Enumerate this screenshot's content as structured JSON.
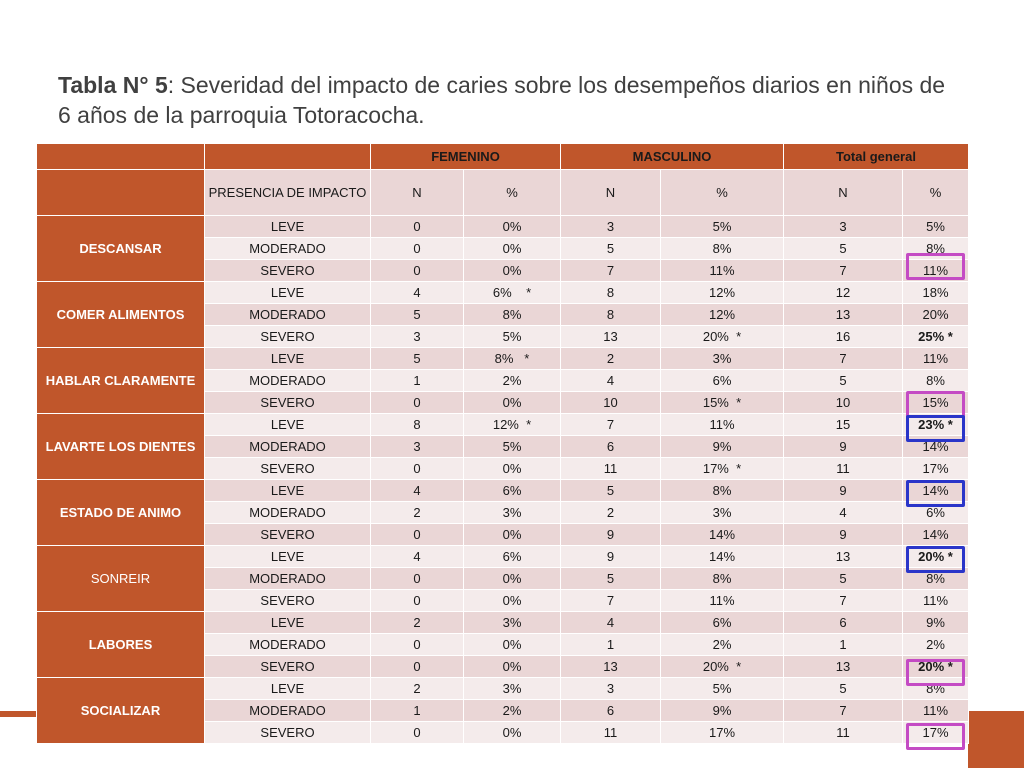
{
  "title": {
    "bold": "Tabla N° 5",
    "rest": ": Severidad del impacto de caries sobre los desempeños diarios en niños de 6 años de la parroquia Totoracocha."
  },
  "headers": {
    "femenino": "FEMENINO",
    "masculino": "MASCULINO",
    "total": "Total general",
    "presencia": "PRESENCIA DE IMPACTO",
    "n": "N",
    "pct": "%"
  },
  "groups": [
    {
      "name": "DESCANSAR",
      "rows": [
        [
          "LEVE",
          "0",
          "0%",
          "3",
          "5%",
          "3",
          "5%"
        ],
        [
          "MODERADO",
          "0",
          "0%",
          "5",
          "8%",
          "5",
          "8%"
        ],
        [
          "SEVERO",
          "0",
          "0%",
          "7",
          "11%",
          "7",
          "11%"
        ]
      ]
    },
    {
      "name": "COMER ALIMENTOS",
      "rows": [
        [
          "LEVE",
          "4",
          "6%    *",
          "8",
          "12%",
          "12",
          "18%"
        ],
        [
          "MODERADO",
          "5",
          "8%",
          "8",
          "12%",
          "13",
          "20%"
        ],
        [
          "SEVERO",
          "3",
          "5%",
          "13",
          "20%  *",
          "16",
          "25% *"
        ]
      ]
    },
    {
      "name": "HABLAR CLARAMENTE",
      "rows": [
        [
          "LEVE",
          "5",
          "8%   *",
          "2",
          "3%",
          "7",
          "11%"
        ],
        [
          "MODERADO",
          "1",
          "2%",
          "4",
          "6%",
          "5",
          "8%"
        ],
        [
          "SEVERO",
          "0",
          "0%",
          "10",
          "15%  *",
          "10",
          "15%"
        ]
      ]
    },
    {
      "name": "LAVARTE LOS DIENTES",
      "rows": [
        [
          "LEVE",
          "8",
          "12%  *",
          "7",
          "11%",
          "15",
          "23% *"
        ],
        [
          "MODERADO",
          "3",
          "5%",
          "6",
          "9%",
          "9",
          "14%"
        ],
        [
          "SEVERO",
          "0",
          "0%",
          "11",
          "17%  *",
          "11",
          "17%"
        ]
      ]
    },
    {
      "name": "ESTADO DE ANIMO",
      "rows": [
        [
          "LEVE",
          "4",
          "6%",
          "5",
          "8%",
          "9",
          "14%"
        ],
        [
          "MODERADO",
          "2",
          "3%",
          "2",
          "3%",
          "4",
          "6%"
        ],
        [
          "SEVERO",
          "0",
          "0%",
          "9",
          "14%",
          "9",
          "14%"
        ]
      ]
    },
    {
      "name": "SONREIR",
      "rows": [
        [
          "LEVE",
          "4",
          "6%",
          "9",
          "14%",
          "13",
          "20% *"
        ],
        [
          "MODERADO",
          "0",
          "0%",
          "5",
          "8%",
          "5",
          "8%"
        ],
        [
          "SEVERO",
          "0",
          "0%",
          "7",
          "11%",
          "7",
          "11%"
        ]
      ]
    },
    {
      "name": "LABORES",
      "rows": [
        [
          "LEVE",
          "2",
          "3%",
          "4",
          "6%",
          "6",
          "9%"
        ],
        [
          "MODERADO",
          "0",
          "0%",
          "1",
          "2%",
          "1",
          "2%"
        ],
        [
          "SEVERO",
          "0",
          "0%",
          "13",
          "20%  *",
          "13",
          "20% *"
        ]
      ]
    },
    {
      "name": "SOCIALIZAR",
      "rows": [
        [
          "LEVE",
          "2",
          "3%",
          "3",
          "5%",
          "5",
          "8%"
        ],
        [
          "MODERADO",
          "1",
          "2%",
          "6",
          "9%",
          "7",
          "11%"
        ],
        [
          "SEVERO",
          "0",
          "0%",
          "11",
          "17%",
          "11",
          "17%"
        ]
      ]
    }
  ],
  "colors": {
    "accent": "#c0562b",
    "row_dark": "#ead6d6",
    "row_light": "#f4ebeb",
    "mark_purple": "#c44bc4",
    "mark_blue": "#2a35c9"
  }
}
